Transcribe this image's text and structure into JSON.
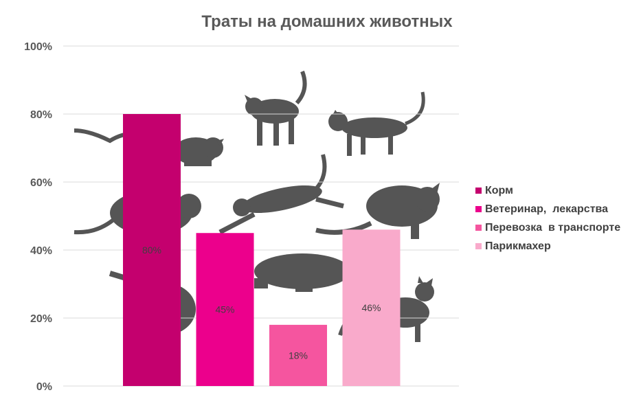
{
  "chart_data": {
    "type": "bar",
    "title": "Траты на домашних животных",
    "series": [
      {
        "name": "Корм",
        "value": 80,
        "label": "80%",
        "color": "#C4006E"
      },
      {
        "name": "Ветеринар,  лекарства",
        "value": 45,
        "label": "45%",
        "color": "#EC008C"
      },
      {
        "name": "Перевозка  в транспорте",
        "value": 18,
        "label": "18%",
        "color": "#F5559F"
      },
      {
        "name": "Парикмахер",
        "value": 46,
        "label": "46%",
        "color": "#F9AACB"
      }
    ],
    "yticks": [
      "0%",
      "20%",
      "40%",
      "60%",
      "80%",
      "100%"
    ],
    "ylim": [
      0,
      100
    ],
    "grid": true,
    "legend_position": "right",
    "background_decoration": "cat-silhouettes"
  }
}
